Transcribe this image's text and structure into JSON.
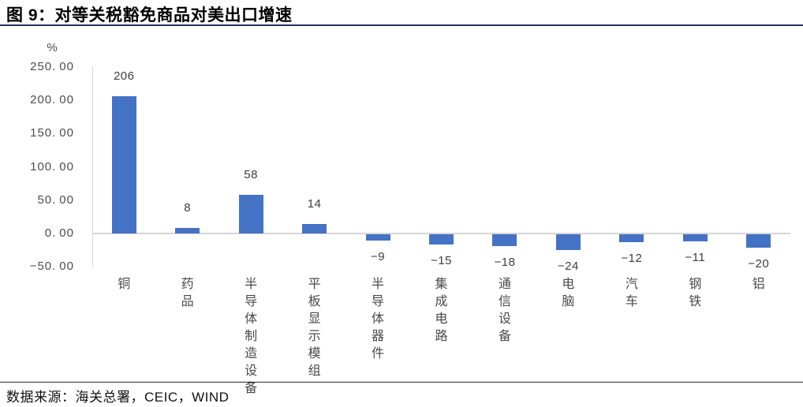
{
  "figure": {
    "title": "图 9：对等关税豁免商品对美出口增速",
    "source": "数据来源：海关总署，CEIC，WIND"
  },
  "colors": {
    "bar": "#4472C4",
    "axis_line": "#D6D6D6",
    "title_rule": "#1C3557",
    "source_rule": "#2B2B2B",
    "tick_text": "#4D4D4D",
    "label_text": "#3D3D3D"
  },
  "chart_data": {
    "type": "bar",
    "title": "对等关税豁免商品对美出口增速",
    "unit": "%",
    "categories": [
      "铜",
      "药品",
      "半导体制造设备",
      "平板显示模组",
      "半导体器件",
      "集成电路",
      "通信设备",
      "电脑",
      "汽车",
      "钢铁",
      "铝"
    ],
    "values": [
      206,
      8,
      58,
      14,
      -9,
      -15,
      -18,
      -24,
      -12,
      -11,
      -20
    ],
    "y_ticks": [
      250,
      200,
      150,
      100,
      50,
      0,
      -50
    ],
    "ylim": [
      -50,
      250
    ],
    "tick_decimals": 2,
    "grid": false,
    "legend": false,
    "value_labels_shown": true,
    "category_orientation": "vertical-stacked"
  }
}
